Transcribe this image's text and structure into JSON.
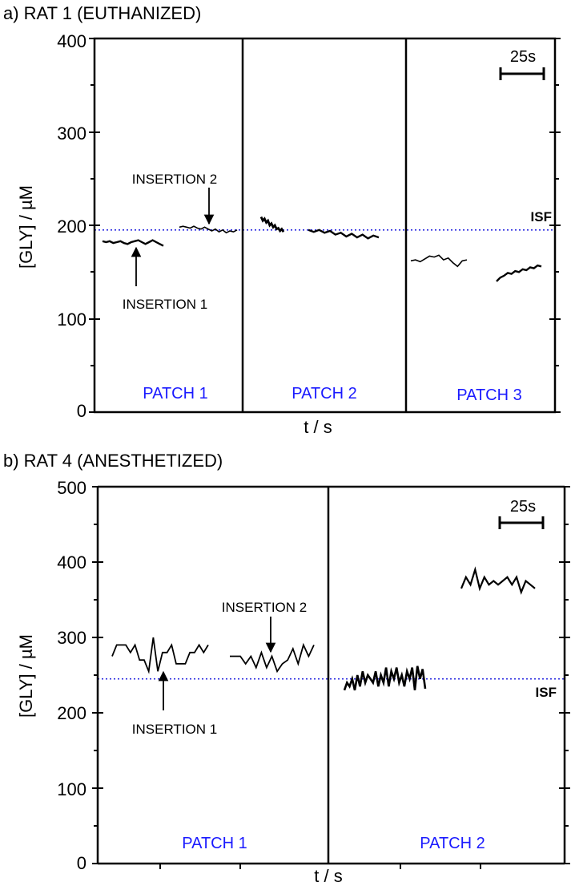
{
  "colors": {
    "patch_label": "#1a1aff",
    "isf_line": "#2a2ae0",
    "trace": "#000000"
  },
  "chart_data": [
    {
      "type": "line",
      "panel": "a",
      "title": "a) RAT 1 (EUTHANIZED)",
      "xlabel": "t / s",
      "ylabel": "[GLY] / µM",
      "ylim": [
        0,
        400
      ],
      "yticks": [
        0,
        100,
        200,
        300,
        400
      ],
      "ytick_labels": [
        "0",
        "100",
        "200",
        "300",
        "400"
      ],
      "isf_value": 195,
      "isf_label": "ISF",
      "scale_bar_label": "25s",
      "patches": [
        {
          "label": "PATCH 1",
          "series": [
            {
              "name": "insertion-1",
              "values": [
                183,
                182,
                183,
                181,
                182,
                183,
                181,
                180,
                182,
                183,
                184,
                182,
                180,
                182,
                184,
                182,
                180,
                178
              ]
            },
            {
              "name": "insertion-2",
              "values": [
                198,
                199,
                198,
                197,
                199,
                197,
                196,
                198,
                196,
                194,
                196,
                193,
                195,
                192,
                194,
                193,
                195
              ]
            }
          ]
        },
        {
          "label": "PATCH 2",
          "series": [
            {
              "name": "segment-1",
              "values": [
                209,
                205,
                207,
                203,
                205,
                200,
                202,
                198,
                200,
                196,
                197,
                194,
                196,
                193
              ]
            },
            {
              "name": "segment-2",
              "values": [
                195,
                193,
                195,
                192,
                194,
                190,
                192,
                188,
                191,
                187,
                190,
                186,
                189,
                187
              ]
            }
          ]
        },
        {
          "label": "PATCH 3",
          "series": [
            {
              "name": "segment-1",
              "values": [
                162,
                163,
                161,
                164,
                167,
                166,
                168,
                163,
                165,
                160,
                156,
                162,
                163
              ]
            },
            {
              "name": "segment-2",
              "values": [
                140,
                144,
                146,
                149,
                148,
                151,
                150,
                153,
                152,
                155,
                154,
                157,
                156
              ]
            }
          ]
        }
      ],
      "annotations": [
        {
          "text": "INSERTION 2",
          "target_value": 196,
          "direction": "down"
        },
        {
          "text": "INSERTION 1",
          "target_value": 180,
          "direction": "up"
        }
      ]
    },
    {
      "type": "line",
      "panel": "b",
      "title": "b) RAT 4 (ANESTHETIZED)",
      "xlabel": "t / s",
      "ylabel": "[GLY] / µM",
      "ylim": [
        0,
        500
      ],
      "yticks": [
        0,
        100,
        200,
        300,
        400,
        500
      ],
      "ytick_labels": [
        "0",
        "100",
        "200",
        "300",
        "400",
        "500"
      ],
      "isf_value": 245,
      "isf_label": "ISF",
      "scale_bar_label": "25s",
      "patches": [
        {
          "label": "PATCH 1",
          "series": [
            {
              "name": "insertion-1",
              "values": [
                275,
                290,
                290,
                290,
                280,
                290,
                270,
                270,
                255,
                300,
                255,
                280,
                280,
                290,
                265,
                265,
                265,
                280,
                280,
                290,
                280,
                290
              ]
            },
            {
              "name": "insertion-2",
              "values": [
                275,
                275,
                275,
                265,
                275,
                260,
                280,
                260,
                275,
                255,
                265,
                270,
                285,
                265,
                290,
                275,
                290
              ]
            }
          ]
        },
        {
          "label": "PATCH 2",
          "series": [
            {
              "name": "segment-1",
              "values": [
                230,
                240,
                235,
                245,
                230,
                250,
                235,
                255,
                240,
                250,
                245,
                240,
                255,
                235,
                250,
                240,
                260,
                235,
                255,
                245,
                260,
                240,
                250,
                235,
                255,
                245,
                260,
                230,
                262,
                245,
                258,
                232
              ]
            },
            {
              "name": "segment-2",
              "values": [
                365,
                380,
                370,
                390,
                365,
                380,
                370,
                375,
                370,
                375,
                380,
                370,
                380,
                360,
                375,
                370,
                365
              ]
            }
          ]
        }
      ],
      "annotations": [
        {
          "text": "INSERTION 2",
          "target_value": 270,
          "direction": "down"
        },
        {
          "text": "INSERTION 1",
          "target_value": 250,
          "direction": "up"
        }
      ]
    }
  ]
}
